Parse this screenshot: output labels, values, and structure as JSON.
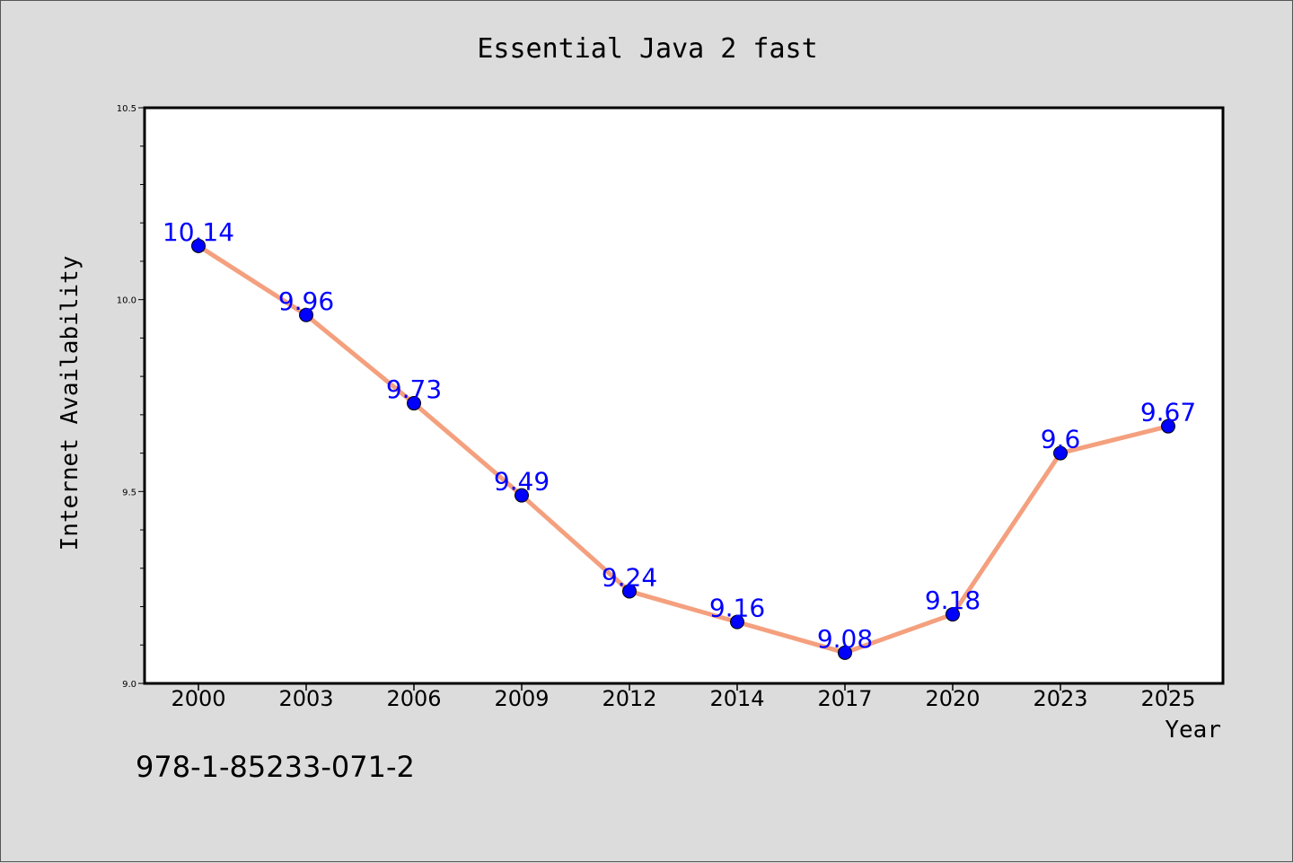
{
  "footer": {
    "isbn": "978-1-85233-071-2"
  },
  "colors": {
    "background": "#dcdcdc",
    "plot_background": "#ffffff",
    "line": "#f4a07e",
    "marker": "#0000ff",
    "data_label": "#0000ff"
  },
  "chart_data": {
    "type": "line",
    "title": "Essential Java 2 fast",
    "xlabel": "Year",
    "ylabel": "Internet Availability",
    "categories": [
      "2000",
      "2003",
      "2006",
      "2009",
      "2012",
      "2014",
      "2017",
      "2020",
      "2023",
      "2025"
    ],
    "series": [
      {
        "values": [
          10.14,
          9.96,
          9.73,
          9.49,
          9.24,
          9.16,
          9.08,
          9.18,
          9.6,
          9.67
        ]
      }
    ],
    "data_labels": [
      "10.14",
      "9.96",
      "9.73",
      "9.49",
      "9.24",
      "9.16",
      "9.08",
      "9.18",
      "9.6",
      "9.67"
    ],
    "ylim": [
      9.0,
      10.5
    ],
    "yticks": [
      9.0,
      9.5,
      10.0,
      10.5
    ],
    "ytick_labels": [
      "9.0",
      "9.5",
      "10.0",
      "10.5"
    ],
    "grid": false,
    "legend": "none"
  }
}
